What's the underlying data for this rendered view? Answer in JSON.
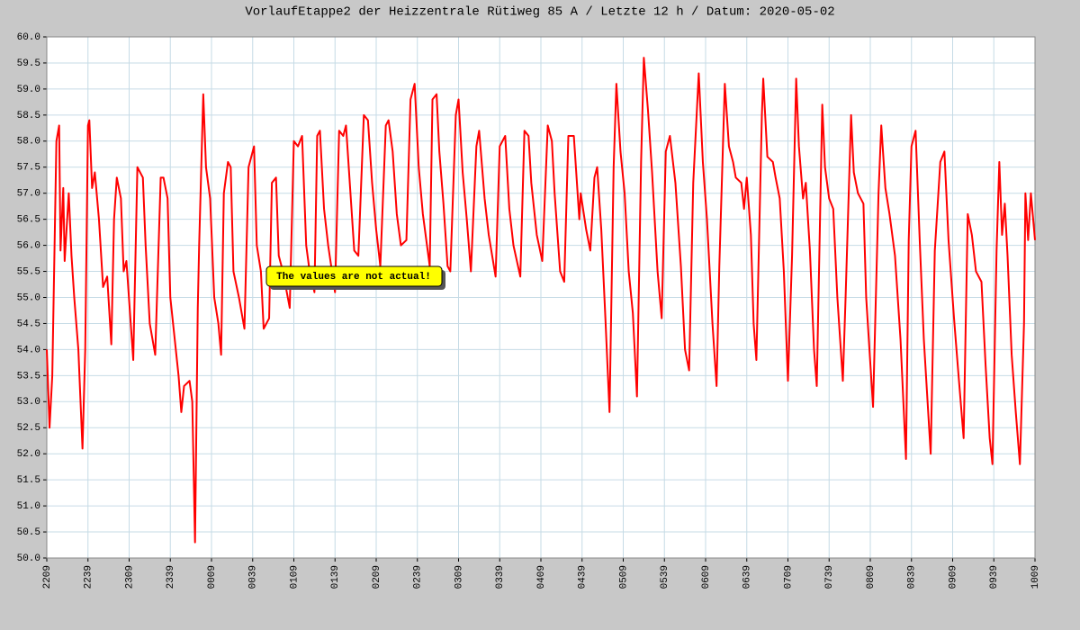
{
  "chart_data": {
    "type": "line",
    "title": "VorlaufEtappe2 der Heizzentrale Rütiweg 85 A / Letzte 12 h / Datum: 2020-05-02",
    "annotation": "The values are not actual!",
    "grid": true,
    "xlim": [
      0,
      720
    ],
    "xticks": [
      {
        "value": 0,
        "label": "2209"
      },
      {
        "value": 30,
        "label": "2239"
      },
      {
        "value": 60,
        "label": "2309"
      },
      {
        "value": 90,
        "label": "2339"
      },
      {
        "value": 120,
        "label": "0009"
      },
      {
        "value": 150,
        "label": "0039"
      },
      {
        "value": 180,
        "label": "0109"
      },
      {
        "value": 210,
        "label": "0139"
      },
      {
        "value": 240,
        "label": "0209"
      },
      {
        "value": 270,
        "label": "0239"
      },
      {
        "value": 300,
        "label": "0309"
      },
      {
        "value": 330,
        "label": "0339"
      },
      {
        "value": 360,
        "label": "0409"
      },
      {
        "value": 390,
        "label": "0439"
      },
      {
        "value": 420,
        "label": "0509"
      },
      {
        "value": 450,
        "label": "0539"
      },
      {
        "value": 480,
        "label": "0609"
      },
      {
        "value": 510,
        "label": "0639"
      },
      {
        "value": 540,
        "label": "0709"
      },
      {
        "value": 570,
        "label": "0739"
      },
      {
        "value": 600,
        "label": "0809"
      },
      {
        "value": 630,
        "label": "0839"
      },
      {
        "value": 660,
        "label": "0909"
      },
      {
        "value": 690,
        "label": "0939"
      },
      {
        "value": 720,
        "label": "1009"
      }
    ],
    "ylim": [
      50,
      60
    ],
    "yticks": [
      {
        "value": 50,
        "label": "50.0"
      },
      {
        "value": 50.5,
        "label": "50.5"
      },
      {
        "value": 51,
        "label": "51.0"
      },
      {
        "value": 51.5,
        "label": "51.5"
      },
      {
        "value": 52,
        "label": "52.0"
      },
      {
        "value": 52.5,
        "label": "52.5"
      },
      {
        "value": 53,
        "label": "53.0"
      },
      {
        "value": 53.5,
        "label": "53.5"
      },
      {
        "value": 54,
        "label": "54.0"
      },
      {
        "value": 54.5,
        "label": "54.5"
      },
      {
        "value": 55,
        "label": "55.0"
      },
      {
        "value": 55.5,
        "label": "55.5"
      },
      {
        "value": 56,
        "label": "56.0"
      },
      {
        "value": 56.5,
        "label": "56.5"
      },
      {
        "value": 57,
        "label": "57.0"
      },
      {
        "value": 57.5,
        "label": "57.5"
      },
      {
        "value": 58,
        "label": "58.0"
      },
      {
        "value": 58.5,
        "label": "58.5"
      },
      {
        "value": 59,
        "label": "59.0"
      },
      {
        "value": 59.5,
        "label": "59.5"
      },
      {
        "value": 60,
        "label": "60.0"
      }
    ],
    "color": "#ff0000",
    "x": [
      0,
      2,
      4,
      7,
      9,
      10,
      12,
      13,
      16,
      18,
      20,
      23,
      26,
      28,
      30,
      31,
      33,
      35,
      38,
      41,
      44,
      47,
      49,
      51,
      54,
      56,
      58,
      63,
      66,
      70,
      72,
      75,
      79,
      83,
      85,
      88,
      90,
      96,
      98,
      100,
      104,
      106,
      108,
      110,
      111,
      114,
      116,
      119,
      122,
      125,
      127,
      129,
      132,
      134,
      136,
      140,
      144,
      147,
      151,
      153,
      156,
      158,
      162,
      164,
      167,
      169,
      172,
      177,
      180,
      183,
      186,
      189,
      191,
      195,
      197,
      199,
      202,
      205,
      210,
      213,
      216,
      218,
      222,
      224,
      227,
      231,
      234,
      237,
      240,
      243,
      247,
      249,
      252,
      255,
      258,
      262,
      265,
      268,
      271,
      274,
      279,
      281,
      284,
      286,
      289,
      292,
      294,
      298,
      300,
      303,
      306,
      309,
      313,
      315,
      319,
      322,
      327,
      330,
      334,
      337,
      340,
      345,
      348,
      351,
      353,
      357,
      361,
      365,
      368,
      370,
      374,
      377,
      380,
      384,
      388,
      389,
      393,
      396,
      399,
      401,
      404,
      407,
      410,
      413,
      415,
      418,
      421,
      424,
      427,
      430,
      433,
      435,
      438,
      441,
      445,
      448,
      451,
      454,
      458,
      462,
      465,
      468,
      471,
      475,
      478,
      481,
      485,
      488,
      490,
      494,
      497,
      500,
      502,
      506,
      508,
      510,
      513,
      515,
      517,
      521,
      522,
      525,
      529,
      531,
      534,
      537,
      540,
      543,
      546,
      548,
      551,
      553,
      556,
      559,
      561,
      565,
      567,
      570,
      573,
      576,
      580,
      582,
      586,
      588,
      591,
      595,
      597,
      602,
      606,
      608,
      611,
      614,
      618,
      622,
      626,
      628,
      630,
      633,
      636,
      639,
      644,
      647,
      651,
      654,
      657,
      661,
      664,
      668,
      671,
      674,
      677,
      681,
      684,
      687,
      689,
      692,
      694,
      696,
      698,
      700,
      703,
      706,
      709,
      712,
      713,
      715,
      717,
      720
    ],
    "values": [
      54.0,
      52.5,
      53.5,
      58.0,
      58.3,
      55.9,
      57.1,
      55.7,
      57.0,
      55.8,
      55.0,
      54.0,
      52.1,
      54.0,
      58.3,
      58.4,
      57.1,
      57.4,
      56.5,
      55.2,
      55.4,
      54.1,
      56.5,
      57.3,
      56.9,
      55.5,
      55.7,
      53.8,
      57.5,
      57.3,
      56.0,
      54.5,
      53.9,
      57.3,
      57.3,
      56.9,
      55.0,
      53.5,
      52.8,
      53.3,
      53.4,
      53.0,
      50.3,
      54.8,
      56.0,
      58.9,
      57.5,
      56.9,
      55.0,
      54.5,
      53.9,
      57.0,
      57.6,
      57.5,
      55.5,
      55.0,
      54.4,
      57.5,
      57.9,
      56.0,
      55.5,
      54.4,
      54.6,
      57.2,
      57.3,
      55.8,
      55.5,
      54.8,
      58.0,
      57.9,
      58.1,
      56.0,
      55.6,
      55.1,
      58.1,
      58.2,
      56.7,
      56.0,
      55.1,
      58.2,
      58.1,
      58.3,
      56.7,
      55.9,
      55.8,
      58.5,
      58.4,
      57.2,
      56.3,
      55.6,
      58.3,
      58.4,
      57.8,
      56.6,
      56.0,
      56.1,
      58.8,
      59.1,
      57.5,
      56.6,
      55.6,
      58.8,
      58.9,
      57.8,
      56.8,
      55.6,
      55.5,
      58.5,
      58.8,
      57.4,
      56.5,
      55.5,
      57.9,
      58.2,
      56.9,
      56.2,
      55.4,
      57.9,
      58.1,
      56.7,
      56.0,
      55.4,
      58.2,
      58.1,
      57.2,
      56.2,
      55.7,
      58.3,
      58.0,
      57.0,
      55.5,
      55.3,
      58.1,
      58.1,
      56.5,
      57.0,
      56.3,
      55.9,
      57.3,
      57.5,
      56.3,
      54.6,
      52.8,
      57.5,
      59.1,
      57.8,
      57.0,
      55.5,
      54.7,
      53.1,
      57.6,
      59.6,
      58.6,
      57.4,
      55.5,
      54.6,
      57.8,
      58.1,
      57.2,
      55.6,
      54.0,
      53.6,
      57.2,
      59.3,
      57.6,
      56.5,
      54.5,
      53.3,
      55.6,
      59.1,
      57.9,
      57.6,
      57.3,
      57.2,
      56.7,
      57.3,
      56.2,
      54.5,
      53.8,
      58.5,
      59.2,
      57.7,
      57.6,
      57.3,
      56.9,
      55.5,
      53.4,
      55.8,
      59.2,
      57.9,
      56.9,
      57.2,
      55.9,
      54.0,
      53.3,
      58.7,
      57.5,
      56.9,
      56.7,
      55.0,
      53.4,
      55.0,
      58.5,
      57.4,
      57.0,
      56.8,
      55.0,
      52.9,
      57.0,
      58.3,
      57.1,
      56.6,
      55.8,
      54.2,
      51.9,
      56.1,
      57.9,
      58.2,
      56.1,
      54.2,
      52.0,
      55.9,
      57.6,
      57.8,
      56.1,
      54.6,
      53.6,
      52.3,
      56.6,
      56.2,
      55.5,
      55.3,
      53.7,
      52.3,
      51.8,
      55.9,
      57.6,
      56.2,
      56.8,
      55.8,
      53.9,
      52.8,
      51.8,
      54.5,
      57.0,
      56.1,
      57.0,
      56.1
    ]
  }
}
